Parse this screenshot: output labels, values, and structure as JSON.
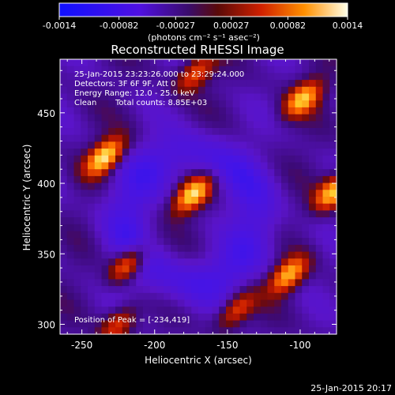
{
  "chart_data": {
    "type": "heatmap",
    "title": "Reconstructed RHESSI Image",
    "xlabel": "Heliocentric X (arcsec)",
    "ylabel": "Heliocentric Y (arcsec)",
    "xlim": [
      -265,
      -75
    ],
    "ylim": [
      293,
      488
    ],
    "x_ticks": [
      "-250",
      "-200",
      "-150",
      "-100"
    ],
    "x_tick_values": [
      -250,
      -200,
      -150,
      -100
    ],
    "y_ticks": [
      "300",
      "350",
      "400",
      "450"
    ],
    "y_tick_values": [
      300,
      350,
      400,
      450
    ],
    "colorbar": {
      "ticks": [
        "-0.0014",
        "-0.00082",
        "-0.00027",
        "0.00027",
        "0.00082",
        "0.0014"
      ],
      "tick_values": [
        -0.0014,
        -0.00082,
        -0.00027,
        0.00027,
        0.00082,
        0.0014
      ],
      "range": [
        -0.0014,
        0.0014
      ],
      "unit_label": "(photons cm⁻² s⁻¹ asec⁻²)"
    },
    "annotations": {
      "time_range": "25-Jan-2015 23:23:26.000 to 23:29:24.000",
      "detectors": "Detectors: 3F 6F 9F, Att 0",
      "energy": "Energy Range: 12.0 - 25.0 keV",
      "clean": "Clean",
      "total_counts": "Total counts: 8.85E+03",
      "peak": "Position of Peak = [-234,419]"
    },
    "sources": [
      {
        "x": -234,
        "y": 419,
        "intensity": 1.0
      },
      {
        "x": -174,
        "y": 392,
        "intensity": 0.93
      },
      {
        "x": -98,
        "y": 460,
        "intensity": 0.82
      },
      {
        "x": -77,
        "y": 394,
        "intensity": 0.9
      },
      {
        "x": -218,
        "y": 343,
        "intensity": 0.8
      },
      {
        "x": -108,
        "y": 335,
        "intensity": 0.85
      },
      {
        "x": -144,
        "y": 310,
        "intensity": 0.6
      },
      {
        "x": -172,
        "y": 478,
        "intensity": 0.6
      },
      {
        "x": -225,
        "y": 300,
        "intensity": 0.55
      }
    ]
  },
  "footer_timestamp": "25-Jan-2015 20:17"
}
